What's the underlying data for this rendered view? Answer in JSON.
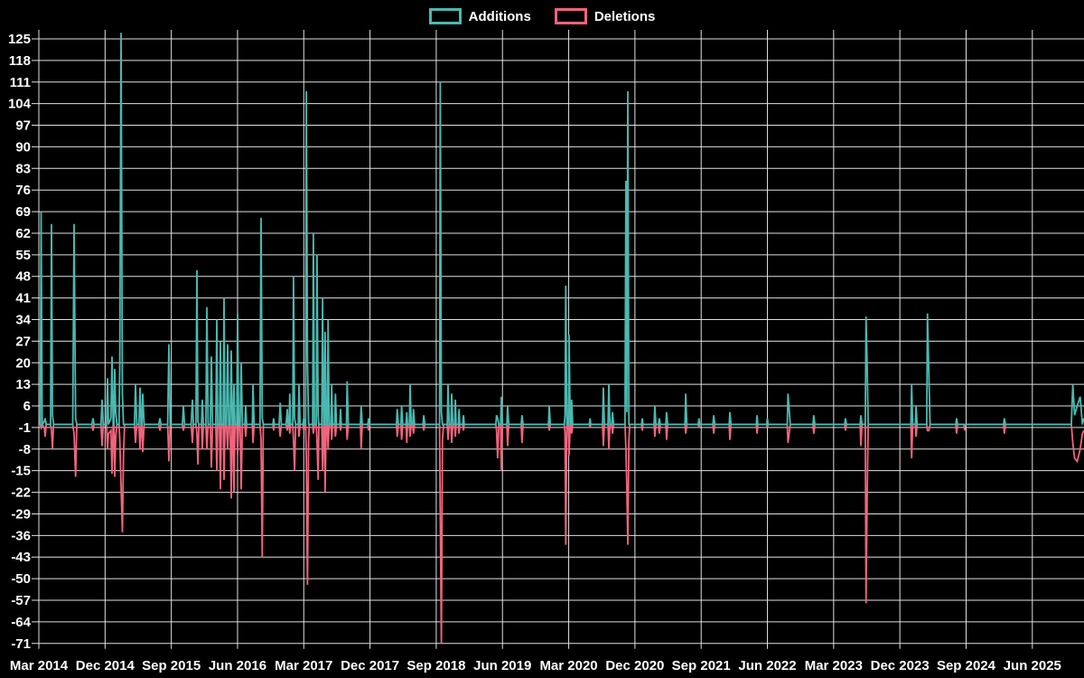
{
  "legend": {
    "items": [
      {
        "label": "Additions",
        "color": "#4ab9b1"
      },
      {
        "label": "Deletions",
        "color": "#f2647d"
      }
    ]
  },
  "chart_data": {
    "type": "line",
    "title": "",
    "grid": true,
    "legend_position": "top-center",
    "background_color": "#000000",
    "grid_color": "#e0e0e0",
    "text_color": "#ffffff",
    "series": [
      {
        "name": "Additions",
        "color": "#4ab9b1"
      },
      {
        "name": "Deletions",
        "color": "#f2647d"
      }
    ],
    "y_axis": {
      "min": -71,
      "max": 125,
      "tick_step": 7,
      "ticks": [
        125,
        118,
        111,
        104,
        97,
        90,
        83,
        76,
        69,
        62,
        55,
        48,
        41,
        34,
        27,
        20,
        13,
        6,
        -1,
        -8,
        -15,
        -22,
        -29,
        -36,
        -43,
        -50,
        -57,
        -64,
        -71
      ]
    },
    "x_axis": {
      "unit": "months since Mar 2014",
      "tick_interval_months": 9,
      "range_months": [
        0,
        142
      ],
      "tick_labels": [
        "Mar 2014",
        "Dec 2014",
        "Sep 2015",
        "Jun 2016",
        "Mar 2017",
        "Dec 2017",
        "Sep 2018",
        "Jun 2019",
        "Mar 2020",
        "Dec 2020",
        "Sep 2021",
        "Jun 2022",
        "Mar 2023",
        "Dec 2023",
        "Sep 2024",
        "Jun 2025"
      ]
    },
    "points_format": [
      "month_offset",
      "additions",
      "deletions"
    ],
    "points": [
      [
        0,
        0,
        0
      ],
      [
        0.2,
        0,
        0
      ],
      [
        0.31,
        69,
        -1
      ],
      [
        0.45,
        0,
        0
      ],
      [
        0.75,
        1,
        -1
      ],
      [
        0.86,
        2,
        -4
      ],
      [
        1,
        0,
        0
      ],
      [
        1.6,
        0,
        0
      ],
      [
        1.72,
        65,
        -2
      ],
      [
        1.85,
        3,
        -8
      ],
      [
        2,
        0,
        0
      ],
      [
        4.6,
        0,
        0
      ],
      [
        4.79,
        65,
        -3
      ],
      [
        5,
        2,
        -17
      ],
      [
        5.15,
        0,
        0
      ],
      [
        7.2,
        0,
        0
      ],
      [
        7.36,
        2,
        -2
      ],
      [
        7.5,
        0,
        0
      ],
      [
        8.45,
        0,
        0
      ],
      [
        8.59,
        8,
        -7
      ],
      [
        8.75,
        0,
        0
      ],
      [
        9.2,
        0,
        0
      ],
      [
        9.33,
        15,
        -8
      ],
      [
        9.45,
        0,
        -3
      ],
      [
        9.8,
        2,
        -2
      ],
      [
        9.94,
        22,
        -16
      ],
      [
        10.1,
        0,
        0
      ],
      [
        10.2,
        0,
        0
      ],
      [
        10.31,
        18,
        -17
      ],
      [
        10.45,
        4,
        -4
      ],
      [
        10.6,
        0,
        0
      ],
      [
        10.9,
        0,
        0
      ],
      [
        11,
        20,
        -5
      ],
      [
        11.17,
        127,
        -20
      ],
      [
        11.35,
        10,
        -35
      ],
      [
        11.5,
        0,
        -10
      ],
      [
        11.65,
        0,
        0
      ],
      [
        13,
        0,
        0
      ],
      [
        13.13,
        13,
        -6
      ],
      [
        13.3,
        0,
        0
      ],
      [
        13.6,
        0,
        0
      ],
      [
        13.75,
        12,
        -8
      ],
      [
        13.9,
        0,
        0
      ],
      [
        14,
        0,
        0
      ],
      [
        14.12,
        10,
        -9
      ],
      [
        14.3,
        0,
        0
      ],
      [
        16.3,
        0,
        0
      ],
      [
        16.45,
        2,
        -2
      ],
      [
        16.6,
        0,
        0
      ],
      [
        17.5,
        0,
        0
      ],
      [
        17.67,
        26,
        -12
      ],
      [
        17.85,
        0,
        0
      ],
      [
        19.5,
        0,
        0
      ],
      [
        19.64,
        6,
        -2
      ],
      [
        19.8,
        0,
        0
      ],
      [
        20.7,
        0,
        0
      ],
      [
        20.87,
        8,
        -6
      ],
      [
        21,
        0,
        0
      ],
      [
        21.35,
        0,
        0
      ],
      [
        21.48,
        50,
        -3
      ],
      [
        21.62,
        1,
        -13
      ],
      [
        21.75,
        0,
        0
      ],
      [
        22.1,
        0,
        0
      ],
      [
        22.22,
        8,
        -8
      ],
      [
        22.35,
        0,
        0
      ],
      [
        22.7,
        0,
        0
      ],
      [
        22.83,
        38,
        -8
      ],
      [
        23,
        0,
        0
      ],
      [
        23.3,
        0,
        0
      ],
      [
        23.44,
        22,
        -14
      ],
      [
        23.6,
        0,
        0
      ],
      [
        24.05,
        0,
        0
      ],
      [
        24.18,
        34,
        -15
      ],
      [
        24.3,
        0,
        0
      ],
      [
        24.55,
        0,
        0
      ],
      [
        24.67,
        27,
        -21
      ],
      [
        24.8,
        0,
        0
      ],
      [
        25.05,
        0,
        0
      ],
      [
        25.16,
        41,
        -18
      ],
      [
        25.3,
        0,
        0
      ],
      [
        25.5,
        0,
        0
      ],
      [
        25.65,
        26,
        -8
      ],
      [
        25.8,
        0,
        0
      ],
      [
        26,
        0,
        0
      ],
      [
        26.14,
        24,
        -24
      ],
      [
        26.28,
        0,
        0
      ],
      [
        26.4,
        0,
        0
      ],
      [
        26.51,
        13,
        -22
      ],
      [
        26.65,
        0,
        0
      ],
      [
        26.9,
        0,
        0
      ],
      [
        27,
        36,
        -10
      ],
      [
        27.15,
        0,
        0
      ],
      [
        27.35,
        0,
        0
      ],
      [
        27.5,
        20,
        -21
      ],
      [
        27.65,
        0,
        0
      ],
      [
        28,
        0,
        0
      ],
      [
        28.1,
        6,
        -4
      ],
      [
        28.25,
        0,
        0
      ],
      [
        29,
        0,
        0
      ],
      [
        29.1,
        13,
        -6
      ],
      [
        29.25,
        0,
        0
      ],
      [
        30.05,
        0,
        0
      ],
      [
        30.2,
        67,
        -5
      ],
      [
        30.35,
        2,
        -43
      ],
      [
        30.5,
        0,
        0
      ],
      [
        31.8,
        0,
        0
      ],
      [
        31.9,
        2,
        -2
      ],
      [
        32,
        0,
        0
      ],
      [
        32.65,
        0,
        0
      ],
      [
        32.8,
        7,
        -4
      ],
      [
        32.95,
        0,
        0
      ],
      [
        33.6,
        0,
        0
      ],
      [
        33.75,
        5,
        -2
      ],
      [
        33.85,
        0,
        0
      ],
      [
        34,
        0,
        0
      ],
      [
        34.1,
        10,
        -3
      ],
      [
        34.2,
        0,
        0
      ],
      [
        34.5,
        0,
        0
      ],
      [
        34.6,
        48,
        -5
      ],
      [
        34.75,
        2,
        -15
      ],
      [
        34.9,
        0,
        0
      ],
      [
        35.25,
        0,
        0
      ],
      [
        35.35,
        13,
        -4
      ],
      [
        35.5,
        0,
        0
      ],
      [
        35.9,
        0,
        0
      ],
      [
        36,
        2,
        -2
      ],
      [
        36.1,
        0,
        0
      ],
      [
        36.25,
        0,
        0
      ],
      [
        36.35,
        108,
        -10
      ],
      [
        36.5,
        20,
        -52
      ],
      [
        36.65,
        0,
        -5
      ],
      [
        36.75,
        0,
        0
      ],
      [
        37.2,
        0,
        0
      ],
      [
        37.3,
        62,
        -3
      ],
      [
        37.45,
        0,
        0
      ],
      [
        37.7,
        0,
        0
      ],
      [
        37.8,
        55,
        -5
      ],
      [
        37.95,
        3,
        -18
      ],
      [
        38.05,
        0,
        0
      ],
      [
        38.45,
        0,
        0
      ],
      [
        38.55,
        41,
        -15
      ],
      [
        38.7,
        0,
        0
      ],
      [
        38.8,
        0,
        0
      ],
      [
        38.9,
        30,
        -22
      ],
      [
        39.05,
        0,
        0
      ],
      [
        39.2,
        0,
        0
      ],
      [
        39.3,
        34,
        -8
      ],
      [
        39.45,
        0,
        0
      ],
      [
        39.7,
        0,
        0
      ],
      [
        39.8,
        13,
        -5
      ],
      [
        39.9,
        0,
        0
      ],
      [
        40.2,
        0,
        0
      ],
      [
        40.3,
        10,
        -4
      ],
      [
        40.45,
        0,
        0
      ],
      [
        40.9,
        0,
        0
      ],
      [
        41,
        5,
        -2
      ],
      [
        41.1,
        0,
        0
      ],
      [
        41.8,
        0,
        0
      ],
      [
        41.9,
        14,
        -5
      ],
      [
        42.05,
        0,
        0
      ],
      [
        43.7,
        0,
        0
      ],
      [
        43.8,
        6,
        -8
      ],
      [
        43.95,
        0,
        0
      ],
      [
        44.7,
        0,
        0
      ],
      [
        44.8,
        2,
        -2
      ],
      [
        44.9,
        0,
        0
      ],
      [
        48.6,
        0,
        0
      ],
      [
        48.7,
        5,
        -4
      ],
      [
        48.85,
        0,
        0
      ],
      [
        49.2,
        0,
        0
      ],
      [
        49.3,
        6,
        -5
      ],
      [
        49.45,
        0,
        0
      ],
      [
        49.9,
        0,
        0
      ],
      [
        50,
        4,
        -6
      ],
      [
        50.1,
        0,
        0
      ],
      [
        50.35,
        0,
        0
      ],
      [
        50.45,
        13,
        -4
      ],
      [
        50.6,
        0,
        0
      ],
      [
        50.8,
        0,
        0
      ],
      [
        50.9,
        5,
        -3
      ],
      [
        51.05,
        0,
        0
      ],
      [
        52.2,
        0,
        0
      ],
      [
        52.3,
        3,
        -2
      ],
      [
        52.45,
        0,
        0
      ],
      [
        54.45,
        0,
        0
      ],
      [
        54.55,
        111,
        -30
      ],
      [
        54.7,
        4,
        -71
      ],
      [
        54.85,
        0,
        -5
      ],
      [
        55,
        0,
        0
      ],
      [
        55.5,
        0,
        0
      ],
      [
        55.6,
        13,
        -5
      ],
      [
        55.75,
        0,
        0
      ],
      [
        56,
        0,
        0
      ],
      [
        56.1,
        10,
        -6
      ],
      [
        56.25,
        0,
        0
      ],
      [
        56.5,
        0,
        0
      ],
      [
        56.6,
        8,
        -4
      ],
      [
        56.7,
        0,
        0
      ],
      [
        57,
        0,
        0
      ],
      [
        57.1,
        5,
        -3
      ],
      [
        57.2,
        0,
        0
      ],
      [
        57.6,
        0,
        0
      ],
      [
        57.7,
        3,
        -2
      ],
      [
        57.8,
        0,
        0
      ],
      [
        62.1,
        0,
        0
      ],
      [
        62.2,
        3,
        -2
      ],
      [
        62.35,
        2,
        -11
      ],
      [
        62.5,
        0,
        0
      ],
      [
        62.75,
        0,
        0
      ],
      [
        62.85,
        9,
        -15
      ],
      [
        63,
        0,
        0
      ],
      [
        63.6,
        0,
        0
      ],
      [
        63.7,
        6,
        -7
      ],
      [
        63.85,
        0,
        0
      ],
      [
        65.55,
        0,
        0
      ],
      [
        65.65,
        3,
        -6
      ],
      [
        65.8,
        0,
        0
      ],
      [
        69.25,
        0,
        0
      ],
      [
        69.35,
        6,
        -2
      ],
      [
        69.5,
        0,
        0
      ],
      [
        71.4,
        0,
        0
      ],
      [
        71.5,
        3,
        -3
      ],
      [
        71.6,
        45,
        -39
      ],
      [
        71.75,
        0,
        0
      ],
      [
        71.95,
        0,
        0
      ],
      [
        72.05,
        29,
        -10
      ],
      [
        72.2,
        0,
        0
      ],
      [
        72.3,
        0,
        0
      ],
      [
        72.4,
        8,
        -3
      ],
      [
        72.55,
        0,
        0
      ],
      [
        74.8,
        0,
        0
      ],
      [
        74.9,
        2,
        -1
      ],
      [
        75,
        0,
        0
      ],
      [
        76.6,
        0,
        0
      ],
      [
        76.7,
        12,
        -7
      ],
      [
        76.85,
        0,
        0
      ],
      [
        77.35,
        0,
        0
      ],
      [
        77.45,
        13,
        -8
      ],
      [
        77.6,
        0,
        0
      ],
      [
        77.85,
        0,
        0
      ],
      [
        77.95,
        4,
        -3
      ],
      [
        78.1,
        0,
        0
      ],
      [
        79.65,
        0,
        0
      ],
      [
        79.78,
        79,
        -8
      ],
      [
        79.9,
        4,
        -20
      ],
      [
        80.03,
        108,
        -39
      ],
      [
        80.18,
        0,
        -5
      ],
      [
        80.3,
        0,
        0
      ],
      [
        81.9,
        0,
        0
      ],
      [
        82,
        2,
        -2
      ],
      [
        82.1,
        0,
        0
      ],
      [
        83.6,
        0,
        0
      ],
      [
        83.7,
        6,
        -4
      ],
      [
        83.85,
        0,
        0
      ],
      [
        84.2,
        0,
        0
      ],
      [
        84.3,
        2,
        -3
      ],
      [
        84.45,
        0,
        0
      ],
      [
        85.2,
        0,
        0
      ],
      [
        85.3,
        4,
        -5
      ],
      [
        85.45,
        0,
        0
      ],
      [
        87.8,
        0,
        0
      ],
      [
        87.9,
        10,
        -3
      ],
      [
        88.05,
        0,
        0
      ],
      [
        89.6,
        0,
        0
      ],
      [
        89.7,
        2,
        -1
      ],
      [
        89.8,
        0,
        0
      ],
      [
        91.6,
        0,
        0
      ],
      [
        91.7,
        3,
        -3
      ],
      [
        91.85,
        0,
        0
      ],
      [
        93.8,
        0,
        0
      ],
      [
        93.9,
        4,
        -5
      ],
      [
        94.05,
        0,
        0
      ],
      [
        97.5,
        0,
        0
      ],
      [
        97.6,
        3,
        -3
      ],
      [
        97.7,
        0,
        0
      ],
      [
        98.9,
        0,
        0
      ],
      [
        99,
        2,
        -1
      ],
      [
        99.1,
        0,
        0
      ],
      [
        101.7,
        0,
        0
      ],
      [
        101.8,
        10,
        -6
      ],
      [
        101.95,
        5,
        -3
      ],
      [
        102.1,
        0,
        0
      ],
      [
        105.2,
        0,
        0
      ],
      [
        105.3,
        3,
        -3
      ],
      [
        105.45,
        0,
        0
      ],
      [
        109.5,
        0,
        0
      ],
      [
        109.6,
        2,
        -2
      ],
      [
        109.75,
        0,
        0
      ],
      [
        111.6,
        0,
        0
      ],
      [
        111.7,
        3,
        -7
      ],
      [
        111.85,
        0,
        0
      ],
      [
        112.3,
        0,
        0
      ],
      [
        112.4,
        35,
        -58
      ],
      [
        112.55,
        20,
        -25
      ],
      [
        112.7,
        0,
        0
      ],
      [
        118.5,
        0,
        0
      ],
      [
        118.6,
        13,
        -11
      ],
      [
        118.75,
        0,
        0
      ],
      [
        119.1,
        0,
        0
      ],
      [
        119.2,
        6,
        -4
      ],
      [
        119.35,
        0,
        0
      ],
      [
        120.65,
        0,
        0
      ],
      [
        120.75,
        36,
        -2
      ],
      [
        120.95,
        16,
        -2
      ],
      [
        121.1,
        0,
        0
      ],
      [
        124.6,
        0,
        0
      ],
      [
        124.7,
        2,
        -3
      ],
      [
        124.85,
        0,
        0
      ],
      [
        125.7,
        0,
        0
      ],
      [
        125.8,
        0,
        -2
      ],
      [
        125.9,
        0,
        0
      ],
      [
        131.1,
        0,
        0
      ],
      [
        131.2,
        2,
        -3
      ],
      [
        131.35,
        0,
        0
      ],
      [
        140.3,
        0,
        0
      ],
      [
        140.5,
        13,
        -6
      ],
      [
        140.75,
        3,
        -11
      ],
      [
        141.1,
        6,
        -12
      ],
      [
        141.5,
        9,
        -8
      ],
      [
        141.8,
        0,
        -3
      ],
      [
        142,
        2,
        -2
      ]
    ]
  }
}
